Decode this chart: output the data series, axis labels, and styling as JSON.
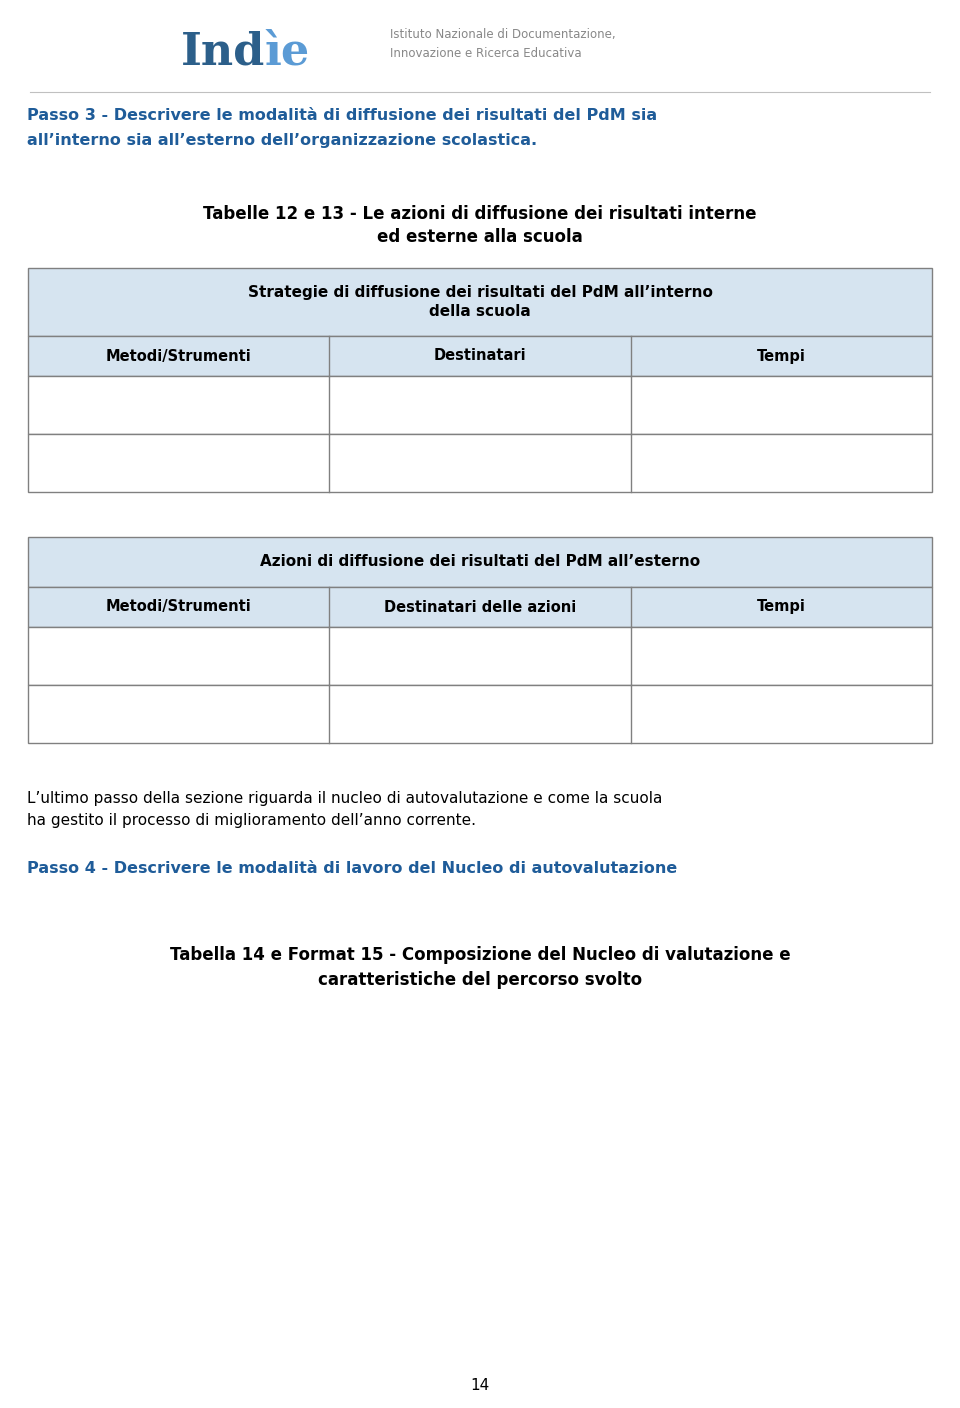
{
  "bg_color": "#ffffff",
  "header_subtitle": "Istituto Nazionale di Documentazione,\nInnovazione e Ricerca Educativa",
  "passo3_line1": "Passo 3 - Descrivere le modalità di diffusione dei risultati del PdM sia",
  "passo3_line2": "all’interno sia all’esterno dell’organizzazione scolastica.",
  "table1_title_line1": "Tabelle 12 e 13 - Le azioni di diffusione dei risultati interne",
  "table1_title_line2": "ed esterne alla scuola",
  "table1_header_line1": "Strategie di diffusione dei risultati del PdM all’interno",
  "table1_header_line2": "della scuola",
  "table1_cols": [
    "Metodi/Strumenti",
    "Destinatari",
    "Tempi"
  ],
  "table2_header": "Azioni di diffusione dei risultati del PdM all’esterno",
  "table2_cols": [
    "Metodi/Strumenti",
    "Destinatari delle azioni",
    "Tempi"
  ],
  "body_line1": "L’ultimo passo della sezione riguarda il nucleo di autovalutazione e come la scuola",
  "body_line2": "ha gestito il processo di miglioramento dell’anno corrente.",
  "passo4_text": "Passo 4 - Descrivere le modalità di lavoro del Nucleo di autovalutazione",
  "table3_title_line1": "Tabella 14 e Format 15 - Composizione del Nucleo di valutazione e",
  "table3_title_line2": "caratteristiche del percorso svolto",
  "page_number": "14",
  "table_header_bg": "#d6e4f0",
  "border_color": "#808080",
  "passo_color": "#1f5c99",
  "text_color": "#000000",
  "logo_color": "#2c5f8a",
  "subtitle_color": "#888888"
}
